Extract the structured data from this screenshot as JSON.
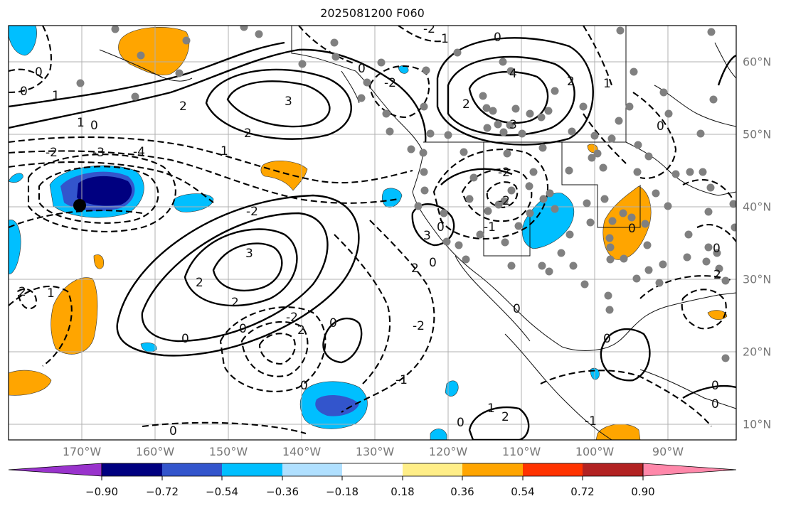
{
  "title": "2025081200 F060",
  "lon_labels": [
    "170°W",
    "160°W",
    "150°W",
    "140°W",
    "130°W",
    "120°W",
    "110°W",
    "100°W",
    "90°W"
  ],
  "lat_labels": [
    "60°N",
    "50°N",
    "40°N",
    "30°N",
    "20°N",
    "10°N"
  ],
  "colorbar": {
    "ticks": [
      "−0.90",
      "−0.72",
      "−0.54",
      "−0.36",
      "−0.18",
      "0.18",
      "0.36",
      "0.54",
      "0.72",
      "0.90"
    ],
    "colors": [
      "#9933cc",
      "#000080",
      "#3355cc",
      "#00bfff",
      "#b0e0ff",
      "#ffffff",
      "#ffee88",
      "#ffa500",
      "#ff3300",
      "#b22222",
      "#ff88aa"
    ]
  },
  "contour_labels": [
    "0",
    "1",
    "2",
    "3",
    "4",
    "-2",
    "-3",
    "-4",
    "-1",
    "-0"
  ]
}
